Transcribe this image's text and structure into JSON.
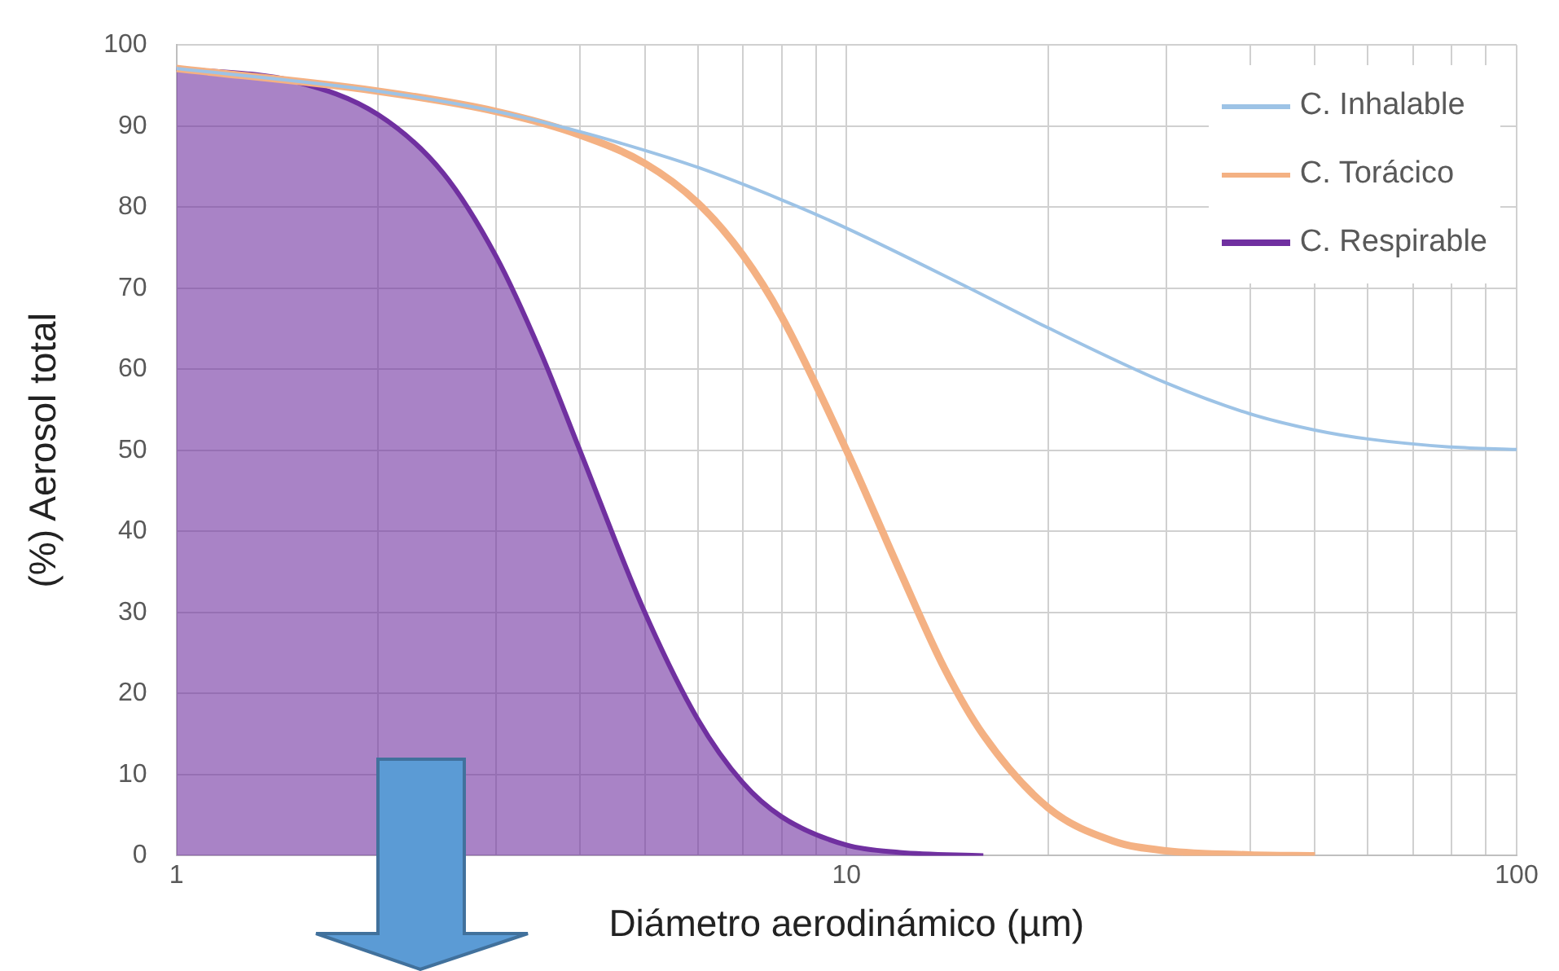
{
  "chart_data": {
    "type": "line",
    "xlabel": "Diámetro aerodinámico (µm)",
    "ylabel": "(%) Aerosol total",
    "log": "x",
    "xlim": [
      1,
      100
    ],
    "ylim": [
      0,
      100
    ],
    "xticks": [
      1,
      {
        "value": 2,
        "label": null
      },
      {
        "value": 3,
        "label": null
      },
      {
        "value": 4,
        "label": null
      },
      {
        "value": 5,
        "label": null
      },
      {
        "value": 6,
        "label": null
      },
      {
        "value": 7,
        "label": null
      },
      {
        "value": 8,
        "label": null
      },
      {
        "value": 9,
        "label": null
      },
      10,
      {
        "value": 20,
        "label": null
      },
      {
        "value": 30,
        "label": null
      },
      {
        "value": 40,
        "label": null
      },
      {
        "value": 50,
        "label": null
      },
      {
        "value": 60,
        "label": null
      },
      {
        "value": 70,
        "label": null
      },
      {
        "value": 80,
        "label": null
      },
      {
        "value": 90,
        "label": null
      },
      100
    ],
    "yticks": [
      0,
      10,
      20,
      30,
      40,
      50,
      60,
      70,
      80,
      90,
      100
    ],
    "grid": true,
    "legend": "top right",
    "marker": "none",
    "line_style": "solid",
    "series": [
      {
        "name": "C. Inhalable",
        "color": "#9dc3e6",
        "x": [
          1,
          2,
          3,
          4,
          5,
          6,
          8,
          10,
          15,
          20,
          30,
          40,
          50,
          60,
          80,
          100
        ],
        "values": [
          97.1,
          94.3,
          91.8,
          89.3,
          87,
          84.9,
          80.9,
          77.4,
          70.3,
          65.1,
          58.3,
          54.5,
          52.5,
          51.4,
          50.4,
          50.1
        ]
      },
      {
        "name": "C. Torácico",
        "color": "#f4b183",
        "x": [
          1,
          2,
          3,
          4,
          5,
          6,
          7,
          8,
          10,
          12,
          14,
          16,
          20,
          25,
          30,
          40,
          50
        ],
        "values": [
          97.1,
          94.3,
          91.8,
          88.9,
          85.4,
          80.5,
          74.1,
          66.5,
          50,
          35.2,
          23.1,
          14.9,
          5.9,
          1.8,
          0.6,
          0.1,
          0
        ]
      },
      {
        "name": "C. Respirable",
        "type": "area",
        "color": "#7030a0",
        "x": [
          1,
          1.5,
          2,
          2.5,
          3,
          3.5,
          4,
          5,
          6,
          7,
          8,
          10,
          12,
          16
        ],
        "values": [
          97.1,
          95.5,
          91.4,
          84.2,
          73.9,
          62,
          50,
          30,
          16.8,
          9,
          4.8,
          1.3,
          0.4,
          0
        ]
      }
    ]
  }
}
